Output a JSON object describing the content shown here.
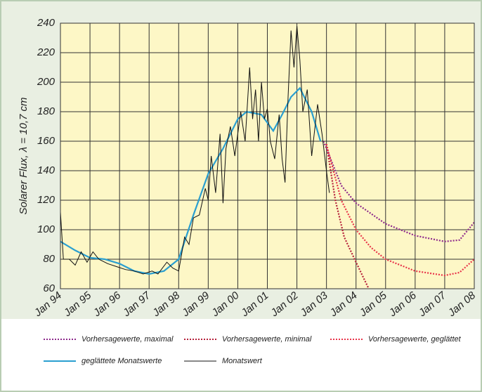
{
  "chart_data": {
    "type": "line",
    "y_label": "Solarer Flux, λ = 10,7 cm",
    "xlim": [
      1994,
      2008
    ],
    "xticks": [
      {
        "value": 1994,
        "label": "Jan 94"
      },
      {
        "value": 1995,
        "label": "Jan 95"
      },
      {
        "value": 1996,
        "label": "Jan 96"
      },
      {
        "value": 1997,
        "label": "Jan 97"
      },
      {
        "value": 1998,
        "label": "Jan 98"
      },
      {
        "value": 1999,
        "label": "Jan 99"
      },
      {
        "value": 2000,
        "label": "Jan 00"
      },
      {
        "value": 2001,
        "label": "Jan 01"
      },
      {
        "value": 2002,
        "label": "Jan 02"
      },
      {
        "value": 2003,
        "label": "Jan 03"
      },
      {
        "value": 2004,
        "label": "Jan 04"
      },
      {
        "value": 2005,
        "label": "Jan 05"
      },
      {
        "value": 2006,
        "label": "Jan 06"
      },
      {
        "value": 2007,
        "label": "Jan 07"
      },
      {
        "value": 2008,
        "label": "Jan 08"
      }
    ],
    "ylim": [
      60,
      240
    ],
    "yticks": [
      60,
      80,
      100,
      120,
      140,
      160,
      180,
      200,
      220,
      240
    ],
    "grid": true,
    "series": [
      {
        "name": "Vorhersagewerte, maximal",
        "color": "#8e2a8c",
        "linestyle": "dotted",
        "x": [
          2002.9,
          2003.5,
          2004,
          2005,
          2006,
          2007,
          2007.5,
          2008
        ],
        "values": [
          160,
          130,
          118,
          104,
          96,
          92,
          93,
          105
        ]
      },
      {
        "name": "Vorhersagewerte, minimal",
        "color": "#b5203a",
        "linestyle": "dotted",
        "x": [
          2003,
          2003.3,
          2003.6,
          2004,
          2004.43
        ],
        "values": [
          158,
          120,
          95,
          78,
          60
        ]
      },
      {
        "name": "Vorhersagewerte, geglättet",
        "color": "#e8344a",
        "linestyle": "dotted",
        "x": [
          2003,
          2003.5,
          2004,
          2004.5,
          2005,
          2006,
          2007,
          2007.5,
          2008
        ],
        "values": [
          158,
          120,
          100,
          88,
          80,
          72,
          69,
          71,
          80
        ]
      },
      {
        "name": "geglättete Monatswerte",
        "color": "#2a9fd0",
        "linestyle": "solid",
        "x": [
          1994,
          1994.5,
          1995,
          1995.5,
          1996,
          1996.5,
          1997,
          1997.5,
          1998,
          1998.5,
          1999,
          1999.5,
          2000,
          2000.3,
          2000.8,
          2001.2,
          2001.5,
          2001.8,
          2002.1,
          2002.5,
          2002.8
        ],
        "values": [
          92,
          86,
          81,
          80,
          77,
          72,
          70,
          72,
          80,
          110,
          138,
          155,
          175,
          180,
          178,
          167,
          178,
          190,
          196,
          180,
          160
        ]
      },
      {
        "name": "Monatswert",
        "color": "#111111",
        "linestyle": "solid",
        "x": [
          1994,
          1994.1,
          1994.3,
          1994.5,
          1994.7,
          1994.9,
          1995.1,
          1995.3,
          1995.6,
          1995.9,
          1996.2,
          1996.5,
          1996.8,
          1997.1,
          1997.3,
          1997.6,
          1997.8,
          1998,
          1998.2,
          1998.35,
          1998.5,
          1998.7,
          1998.9,
          1999,
          1999.1,
          1999.25,
          1999.4,
          1999.5,
          1999.6,
          1999.75,
          1999.9,
          2000,
          2000.1,
          2000.25,
          2000.4,
          2000.5,
          2000.6,
          2000.7,
          2000.8,
          2000.9,
          2001,
          2001.1,
          2001.25,
          2001.4,
          2001.5,
          2001.6,
          2001.7,
          2001.8,
          2001.9,
          2002,
          2002.1,
          2002.2,
          2002.35,
          2002.5,
          2002.7,
          2002.85,
          2003,
          2003.1
        ],
        "values": [
          112,
          80,
          80,
          76,
          85,
          78,
          85,
          80,
          77,
          75,
          73,
          72,
          70,
          72,
          70,
          78,
          74,
          72,
          95,
          90,
          108,
          110,
          128,
          120,
          150,
          125,
          165,
          118,
          155,
          170,
          150,
          165,
          180,
          160,
          210,
          175,
          195,
          160,
          200,
          175,
          182,
          160,
          148,
          178,
          148,
          132,
          190,
          235,
          210,
          238,
          215,
          180,
          195,
          150,
          185,
          165,
          140,
          125
        ]
      }
    ]
  }
}
